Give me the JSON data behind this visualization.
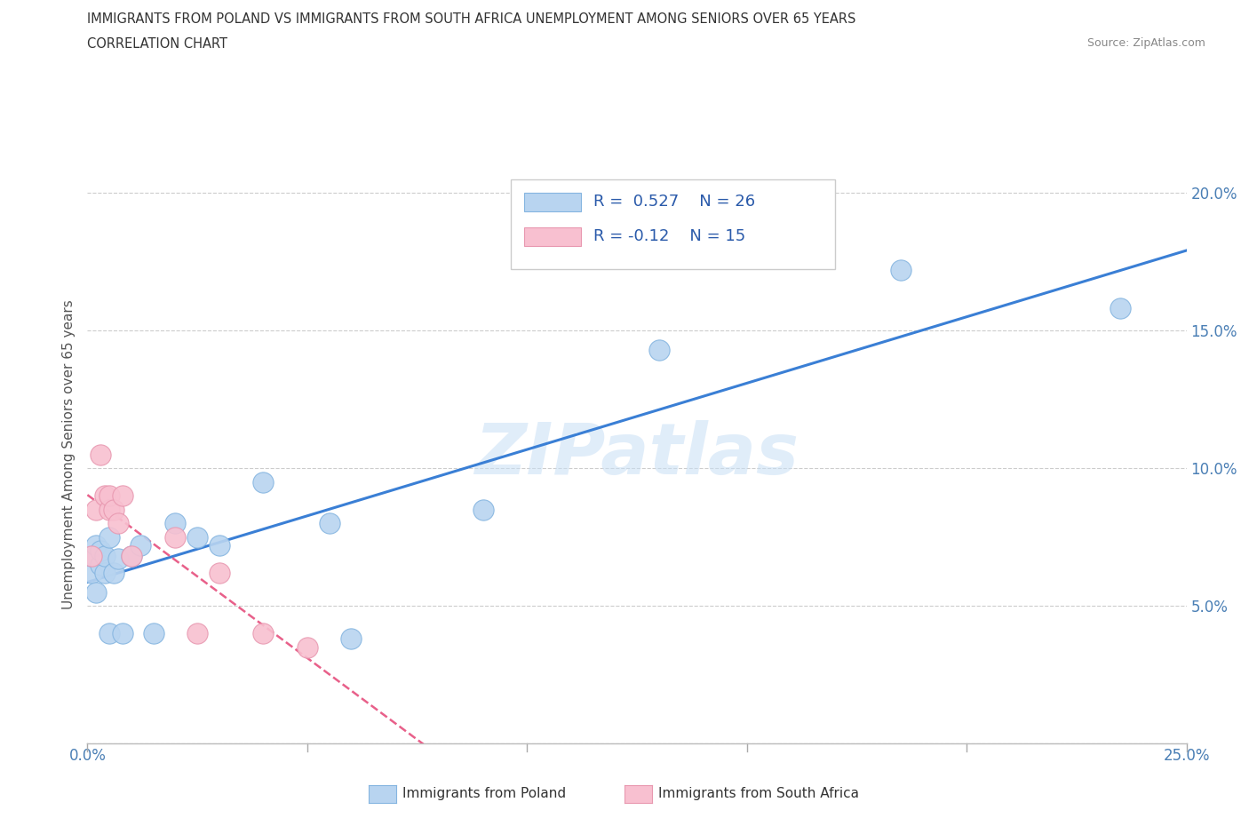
{
  "title_line1": "IMMIGRANTS FROM POLAND VS IMMIGRANTS FROM SOUTH AFRICA UNEMPLOYMENT AMONG SENIORS OVER 65 YEARS",
  "title_line2": "CORRELATION CHART",
  "source": "Source: ZipAtlas.com",
  "ylabel": "Unemployment Among Seniors over 65 years",
  "xlim": [
    0.0,
    0.25
  ],
  "ylim": [
    0.0,
    0.21
  ],
  "x_ticks": [
    0.0,
    0.05,
    0.1,
    0.15,
    0.2,
    0.25
  ],
  "y_ticks": [
    0.0,
    0.05,
    0.1,
    0.15,
    0.2
  ],
  "R_poland": 0.527,
  "N_poland": 26,
  "R_south_africa": -0.12,
  "N_south_africa": 15,
  "color_poland": "#b8d4f0",
  "color_south_africa": "#f8c0d0",
  "line_color_poland": "#3a7fd5",
  "line_color_south_africa": "#e8608a",
  "watermark_text": "ZIPatlas",
  "poland_x": [
    0.001,
    0.001,
    0.002,
    0.002,
    0.003,
    0.003,
    0.004,
    0.004,
    0.005,
    0.005,
    0.006,
    0.007,
    0.008,
    0.01,
    0.012,
    0.015,
    0.02,
    0.025,
    0.03,
    0.04,
    0.055,
    0.06,
    0.09,
    0.13,
    0.185,
    0.235
  ],
  "poland_y": [
    0.062,
    0.068,
    0.055,
    0.072,
    0.065,
    0.07,
    0.062,
    0.068,
    0.04,
    0.075,
    0.062,
    0.067,
    0.04,
    0.068,
    0.072,
    0.04,
    0.08,
    0.075,
    0.072,
    0.095,
    0.08,
    0.038,
    0.085,
    0.143,
    0.172,
    0.158
  ],
  "south_africa_x": [
    0.001,
    0.002,
    0.003,
    0.004,
    0.005,
    0.005,
    0.006,
    0.007,
    0.008,
    0.01,
    0.02,
    0.025,
    0.03,
    0.04,
    0.05
  ],
  "south_africa_y": [
    0.068,
    0.085,
    0.105,
    0.09,
    0.085,
    0.09,
    0.085,
    0.08,
    0.09,
    0.068,
    0.075,
    0.04,
    0.062,
    0.04,
    0.035
  ]
}
